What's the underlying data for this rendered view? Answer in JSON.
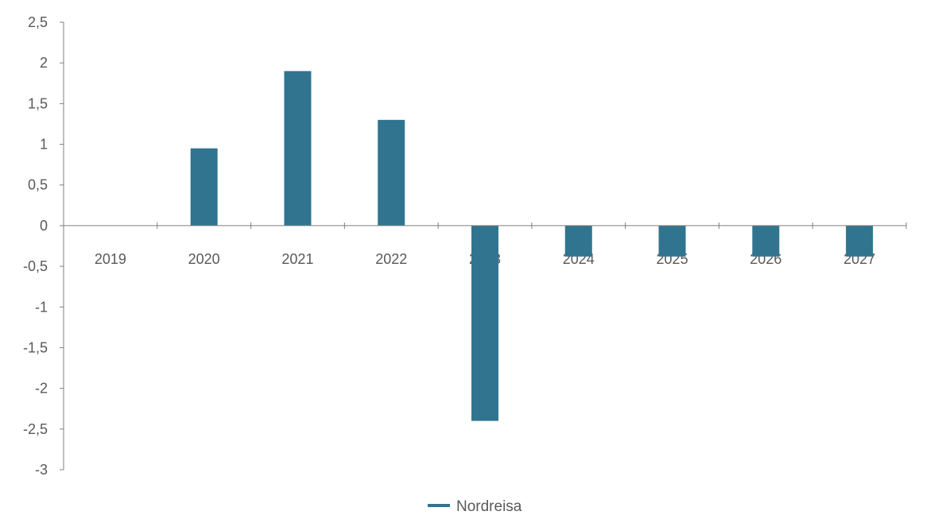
{
  "chart_data": {
    "type": "bar",
    "categories": [
      "2019",
      "2020",
      "2021",
      "2022",
      "2023",
      "2024",
      "2025",
      "2026",
      "2027"
    ],
    "series": [
      {
        "name": "Nordreisa",
        "color": "#31748f",
        "values": [
          0,
          0.95,
          1.9,
          1.3,
          -2.4,
          -0.38,
          -0.38,
          -0.38,
          -0.38
        ]
      }
    ],
    "ylim": [
      -3,
      2.5
    ],
    "yticks": [
      "2,5",
      "2",
      "1,5",
      "1",
      "0,5",
      "0",
      "-0,5",
      "-1",
      "-1,5",
      "-2",
      "-2,5",
      "-3"
    ],
    "ytick_values": [
      2.5,
      2,
      1.5,
      1,
      0.5,
      0,
      -0.5,
      -1,
      -1.5,
      -2,
      -2.5,
      -3
    ],
    "grid": false,
    "legend": "bottom-center",
    "title": "",
    "xlabel": "",
    "ylabel": ""
  }
}
